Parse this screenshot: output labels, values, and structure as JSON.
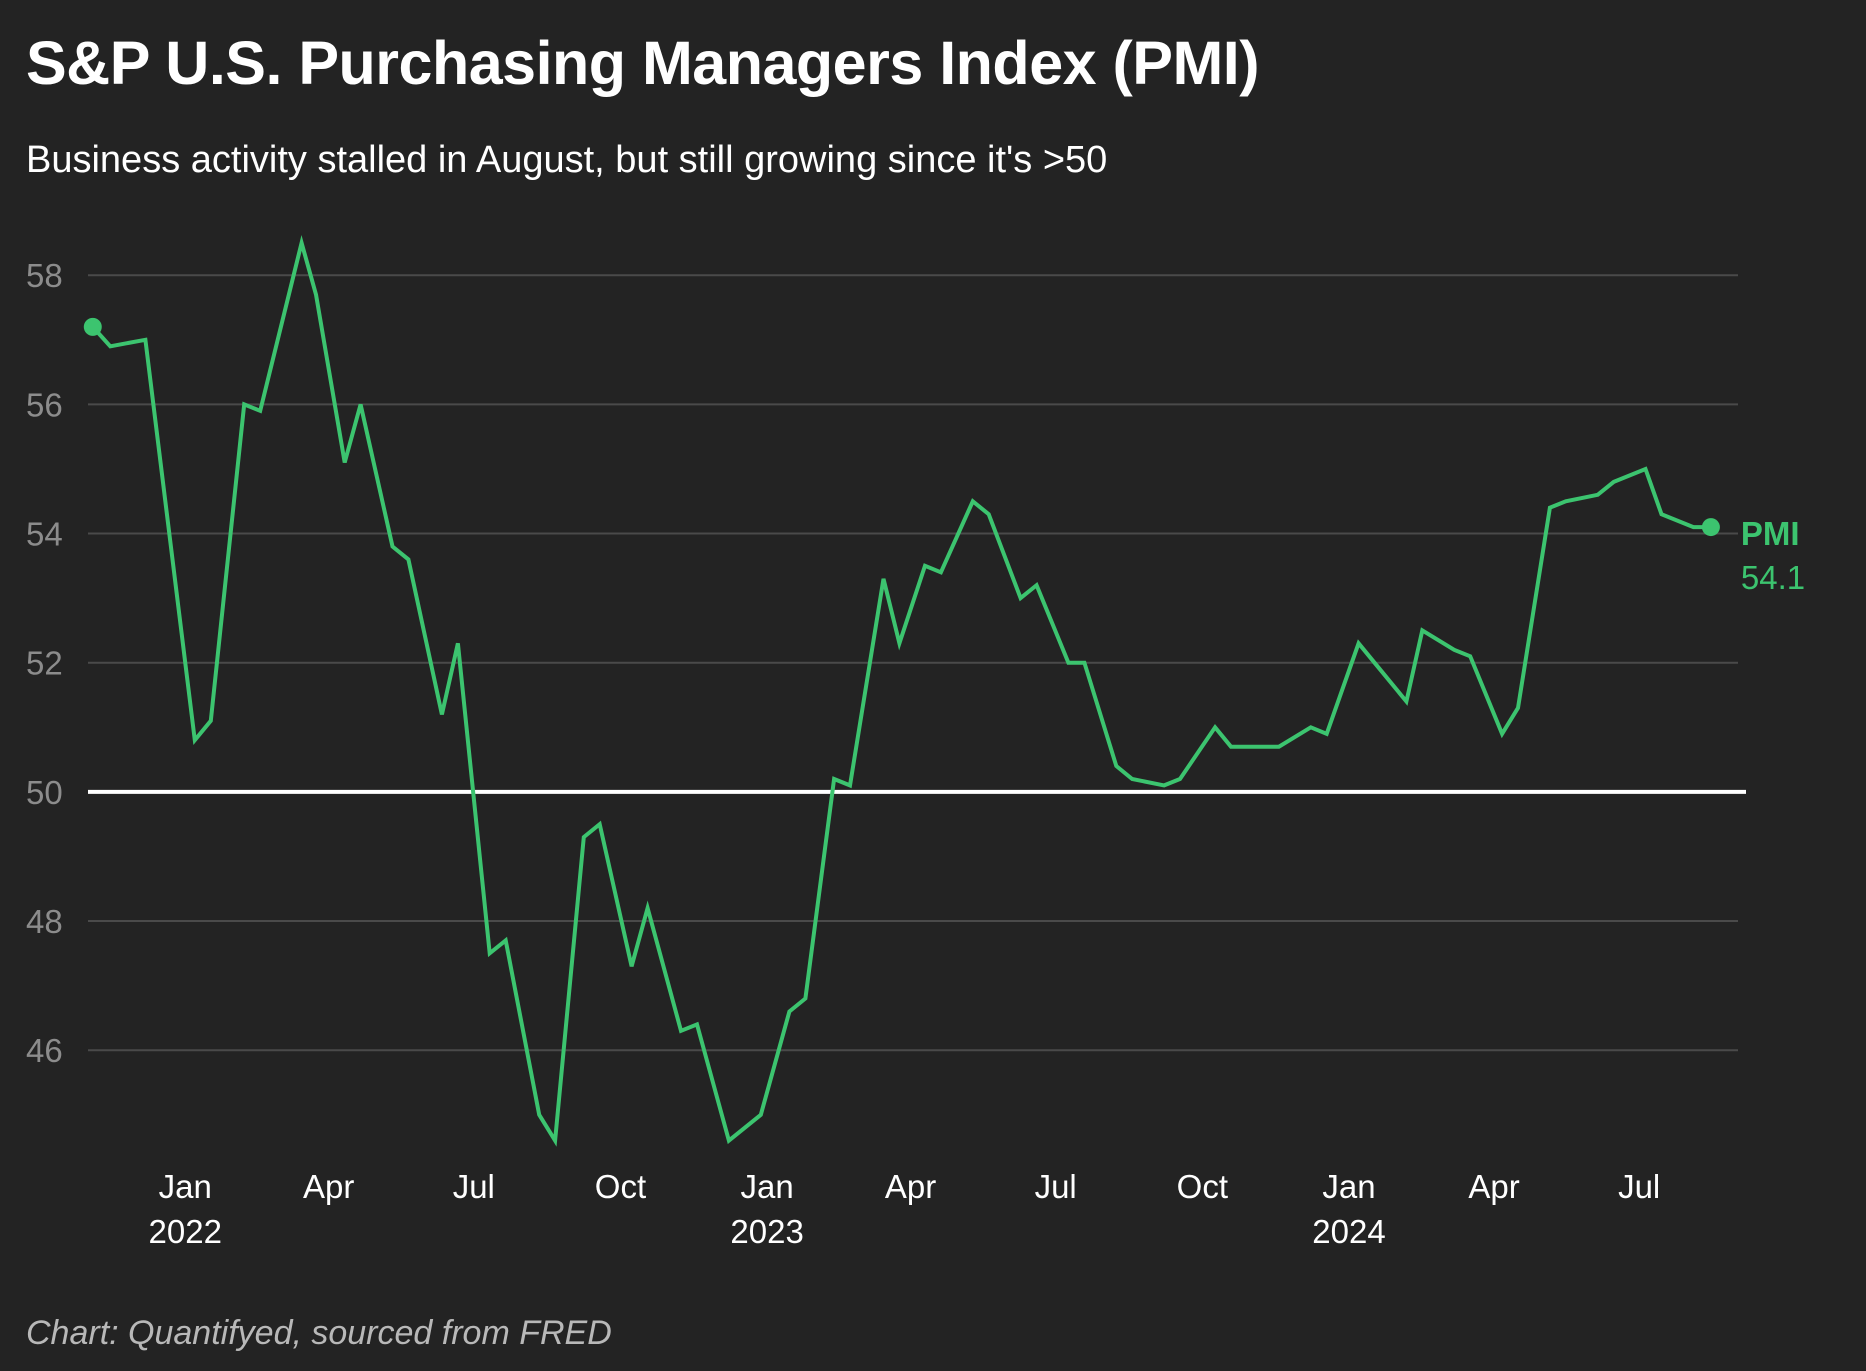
{
  "title": "S&P U.S. Purchasing Managers Index (PMI)",
  "subtitle": "Business activity stalled in August, but still growing since it's >50",
  "caption": "Chart: Quantifyed, sourced from FRED",
  "colors": {
    "background": "#232323",
    "line": "#3cc46f",
    "grid": "#4a4a4a",
    "reference_line": "#ffffff"
  },
  "chart_data": {
    "type": "line",
    "title": "S&P U.S. Purchasing Managers Index (PMI)",
    "subtitle": "Business activity stalled in August, but still growing since it's >50",
    "xlabel": "",
    "ylabel": "",
    "ylim": [
      44.3,
      58.7
    ],
    "xlim": [
      "2021-11-01",
      "2024-09-01"
    ],
    "grid": true,
    "y_ticks": [
      46,
      48,
      50,
      52,
      54,
      56,
      58
    ],
    "x_ticks": [
      {
        "date": "2022-01-01",
        "label": "Jan",
        "year": "2022"
      },
      {
        "date": "2022-04-01",
        "label": "Apr",
        "year": ""
      },
      {
        "date": "2022-07-01",
        "label": "Jul",
        "year": ""
      },
      {
        "date": "2022-10-01",
        "label": "Oct",
        "year": ""
      },
      {
        "date": "2023-01-01",
        "label": "Jan",
        "year": "2023"
      },
      {
        "date": "2023-04-01",
        "label": "Apr",
        "year": ""
      },
      {
        "date": "2023-07-01",
        "label": "Jul",
        "year": ""
      },
      {
        "date": "2023-10-01",
        "label": "Oct",
        "year": ""
      },
      {
        "date": "2024-01-01",
        "label": "Jan",
        "year": "2024"
      },
      {
        "date": "2024-04-01",
        "label": "Apr",
        "year": ""
      },
      {
        "date": "2024-07-01",
        "label": "Jul",
        "year": ""
      }
    ],
    "reference_line": {
      "y": 50
    },
    "series": [
      {
        "name": "PMI",
        "end_label": "54.1",
        "points": [
          [
            "2021-11-04",
            57.2
          ],
          [
            "2021-11-15",
            56.9
          ],
          [
            "2021-12-07",
            57.0
          ],
          [
            "2022-01-07",
            50.8
          ],
          [
            "2022-01-17",
            51.1
          ],
          [
            "2022-02-07",
            56.0
          ],
          [
            "2022-02-17",
            55.9
          ],
          [
            "2022-03-15",
            58.5
          ],
          [
            "2022-03-24",
            57.7
          ],
          [
            "2022-04-11",
            55.1
          ],
          [
            "2022-04-21",
            56.0
          ],
          [
            "2022-05-11",
            53.8
          ],
          [
            "2022-05-21",
            53.6
          ],
          [
            "2022-06-11",
            51.2
          ],
          [
            "2022-06-21",
            52.3
          ],
          [
            "2022-07-11",
            47.5
          ],
          [
            "2022-07-21",
            47.7
          ],
          [
            "2022-08-11",
            45.0
          ],
          [
            "2022-08-21",
            44.6
          ],
          [
            "2022-09-08",
            49.3
          ],
          [
            "2022-09-18",
            49.5
          ],
          [
            "2022-10-08",
            47.3
          ],
          [
            "2022-10-18",
            48.2
          ],
          [
            "2022-11-08",
            46.3
          ],
          [
            "2022-11-18",
            46.4
          ],
          [
            "2022-12-08",
            44.6
          ],
          [
            "2022-12-28",
            45.0
          ],
          [
            "2023-01-15",
            46.6
          ],
          [
            "2023-01-25",
            46.8
          ],
          [
            "2023-02-12",
            50.2
          ],
          [
            "2023-02-22",
            50.1
          ],
          [
            "2023-03-15",
            53.3
          ],
          [
            "2023-03-25",
            52.3
          ],
          [
            "2023-04-10",
            53.5
          ],
          [
            "2023-04-20",
            53.4
          ],
          [
            "2023-05-10",
            54.5
          ],
          [
            "2023-05-20",
            54.3
          ],
          [
            "2023-06-09",
            53.0
          ],
          [
            "2023-06-19",
            53.2
          ],
          [
            "2023-07-09",
            52.0
          ],
          [
            "2023-07-19",
            52.0
          ],
          [
            "2023-08-08",
            50.4
          ],
          [
            "2023-08-18",
            50.2
          ],
          [
            "2023-09-07",
            50.1
          ],
          [
            "2023-09-17",
            50.2
          ],
          [
            "2023-10-09",
            51.0
          ],
          [
            "2023-10-19",
            50.7
          ],
          [
            "2023-11-08",
            50.7
          ],
          [
            "2023-11-18",
            50.7
          ],
          [
            "2023-12-08",
            51.0
          ],
          [
            "2023-12-18",
            50.9
          ],
          [
            "2024-01-07",
            52.3
          ],
          [
            "2024-01-17",
            52.0
          ],
          [
            "2024-02-06",
            51.4
          ],
          [
            "2024-02-16",
            52.5
          ],
          [
            "2024-03-07",
            52.2
          ],
          [
            "2024-03-17",
            52.1
          ],
          [
            "2024-04-06",
            50.9
          ],
          [
            "2024-04-16",
            51.3
          ],
          [
            "2024-05-06",
            54.4
          ],
          [
            "2024-05-16",
            54.5
          ],
          [
            "2024-06-05",
            54.6
          ],
          [
            "2024-06-15",
            54.8
          ],
          [
            "2024-07-05",
            55.0
          ],
          [
            "2024-07-15",
            54.3
          ],
          [
            "2024-08-04",
            54.1
          ],
          [
            "2024-08-15",
            54.1
          ]
        ]
      }
    ]
  }
}
